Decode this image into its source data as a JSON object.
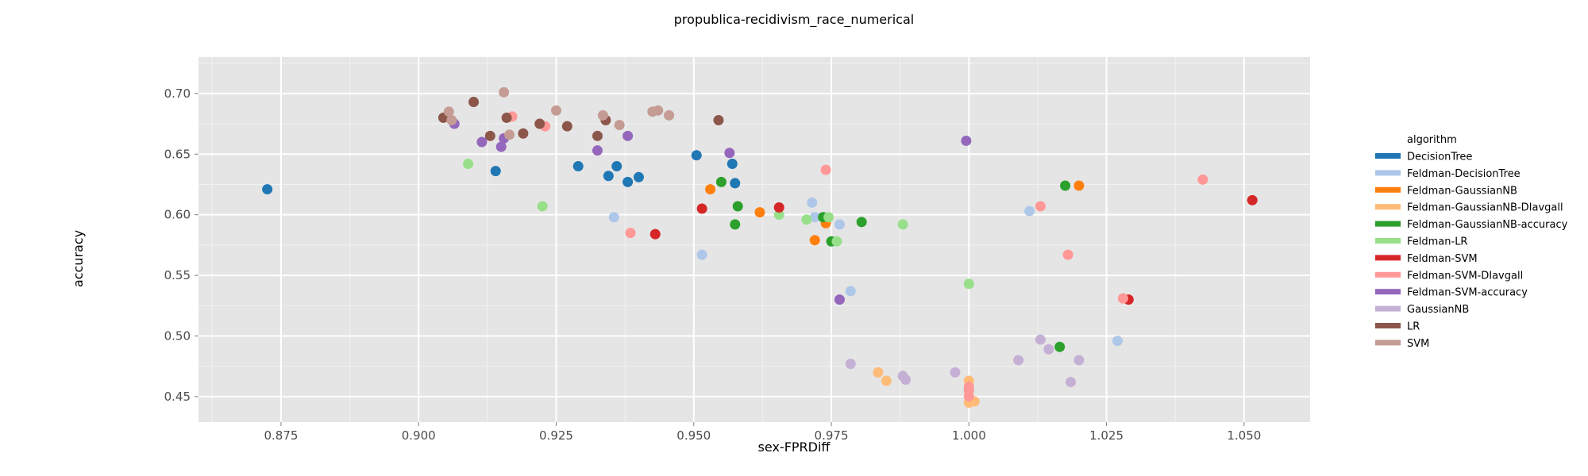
{
  "chart_data": {
    "type": "scatter",
    "title": "propublica-recidivism_race_numerical",
    "xlabel": "sex-FPRDiff",
    "ylabel": "accuracy",
    "xlim": [
      0.86,
      1.062
    ],
    "ylim": [
      0.429,
      0.73
    ],
    "x_ticks": [
      "0.875",
      "0.900",
      "0.925",
      "0.950",
      "0.975",
      "1.000",
      "1.025",
      "1.050"
    ],
    "y_ticks": [
      "0.45",
      "0.50",
      "0.55",
      "0.60",
      "0.65",
      "0.70"
    ],
    "grid": true,
    "legend_title": "algorithm",
    "legend_position": "right",
    "series": [
      {
        "name": "DecisionTree",
        "color": "#1f77b4",
        "x": [
          0.8725,
          0.914,
          0.929,
          0.9345,
          0.936,
          0.938,
          0.94,
          0.9505,
          0.957,
          0.9575
        ],
        "y": [
          0.621,
          0.636,
          0.64,
          0.632,
          0.64,
          0.627,
          0.631,
          0.649,
          0.642,
          0.626
        ]
      },
      {
        "name": "Feldman-DecisionTree",
        "color": "#aec7e8",
        "x": [
          0.9355,
          0.9515,
          0.9715,
          0.972,
          0.9765,
          0.9785,
          1.011,
          1.027
        ],
        "y": [
          0.598,
          0.567,
          0.61,
          0.598,
          0.592,
          0.537,
          0.603,
          0.496
        ]
      },
      {
        "name": "Feldman-GaussianNB",
        "color": "#ff7f0e",
        "x": [
          0.953,
          0.962,
          0.972,
          0.974,
          1.02
        ],
        "y": [
          0.621,
          0.602,
          0.579,
          0.593,
          0.624
        ]
      },
      {
        "name": "Feldman-GaussianNB-DIavgall",
        "color": "#ffbb78",
        "x": [
          0.9835,
          0.985,
          1.0,
          1.0,
          1.001
        ],
        "y": [
          0.47,
          0.463,
          0.463,
          0.445,
          0.446
        ]
      },
      {
        "name": "Feldman-GaussianNB-accuracy",
        "color": "#2ca02c",
        "x": [
          0.955,
          0.9575,
          0.958,
          0.9735,
          0.975,
          0.9805,
          1.0165,
          1.0175
        ],
        "y": [
          0.627,
          0.592,
          0.607,
          0.598,
          0.578,
          0.594,
          0.491,
          0.624
        ]
      },
      {
        "name": "Feldman-LR",
        "color": "#98df8a",
        "x": [
          0.909,
          0.9225,
          0.9655,
          0.9705,
          0.9745,
          0.976,
          0.988,
          1.0
        ],
        "y": [
          0.642,
          0.607,
          0.6,
          0.596,
          0.598,
          0.578,
          0.592,
          0.543
        ]
      },
      {
        "name": "Feldman-SVM",
        "color": "#d62728",
        "x": [
          0.943,
          0.9515,
          0.9655,
          1.029,
          1.0515
        ],
        "y": [
          0.584,
          0.605,
          0.606,
          0.53,
          0.612
        ]
      },
      {
        "name": "Feldman-SVM-DIavgall",
        "color": "#ff9896",
        "x": [
          0.917,
          0.923,
          0.9385,
          0.974,
          1.0,
          1.0,
          1.0,
          1.013,
          1.018,
          1.028,
          1.0425
        ],
        "y": [
          0.681,
          0.673,
          0.585,
          0.637,
          0.458,
          0.455,
          0.45,
          0.607,
          0.567,
          0.531,
          0.629
        ]
      },
      {
        "name": "Feldman-SVM-accuracy",
        "color": "#9467bd",
        "x": [
          0.9065,
          0.9115,
          0.915,
          0.9155,
          0.9325,
          0.938,
          0.9565,
          0.9765,
          0.9995
        ],
        "y": [
          0.675,
          0.66,
          0.656,
          0.663,
          0.653,
          0.665,
          0.651,
          0.53,
          0.661
        ]
      },
      {
        "name": "GaussianNB",
        "color": "#c5b0d5",
        "x": [
          0.9785,
          0.988,
          0.9885,
          0.9975,
          1.009,
          1.013,
          1.0145,
          1.0185,
          1.02
        ],
        "y": [
          0.477,
          0.467,
          0.464,
          0.47,
          0.48,
          0.497,
          0.489,
          0.462,
          0.48
        ]
      },
      {
        "name": "LR",
        "color": "#8c564b",
        "x": [
          0.9045,
          0.91,
          0.913,
          0.916,
          0.919,
          0.922,
          0.927,
          0.9325,
          0.934,
          0.9545
        ],
        "y": [
          0.68,
          0.693,
          0.665,
          0.68,
          0.667,
          0.675,
          0.673,
          0.665,
          0.678,
          0.678
        ]
      },
      {
        "name": "SVM",
        "color": "#c49c94",
        "x": [
          0.9055,
          0.906,
          0.9155,
          0.9165,
          0.925,
          0.9335,
          0.9365,
          0.9425,
          0.9435,
          0.9455
        ],
        "y": [
          0.685,
          0.678,
          0.701,
          0.666,
          0.686,
          0.682,
          0.674,
          0.685,
          0.686,
          0.682
        ]
      }
    ]
  }
}
